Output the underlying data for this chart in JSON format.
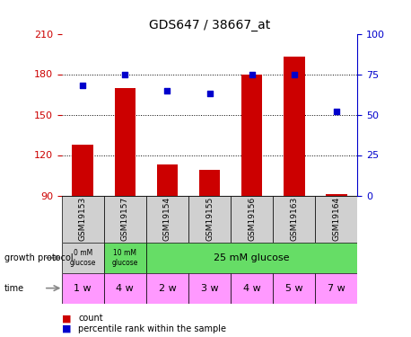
{
  "title": "GDS647 / 38667_at",
  "samples": [
    "GSM19153",
    "GSM19157",
    "GSM19154",
    "GSM19155",
    "GSM19156",
    "GSM19163",
    "GSM19164"
  ],
  "counts": [
    128,
    170,
    113,
    109,
    180,
    193,
    91
  ],
  "percentile_ranks": [
    68,
    75,
    65,
    63,
    75,
    75,
    52
  ],
  "ylim_left": [
    90,
    210
  ],
  "ylim_right": [
    0,
    100
  ],
  "yticks_left": [
    90,
    120,
    150,
    180,
    210
  ],
  "yticks_right": [
    0,
    25,
    50,
    75,
    100
  ],
  "time_labels": [
    "1 w",
    "4 w",
    "2 w",
    "3 w",
    "4 w",
    "5 w",
    "7 w"
  ],
  "time_color": "#ff99ff",
  "protocol_gray": "#d0d0d0",
  "protocol_green": "#66dd66",
  "sample_bg": "#d0d0d0",
  "bar_color": "#cc0000",
  "dot_color": "#0000cc",
  "axis_left_color": "#cc0000",
  "axis_right_color": "#0000cc",
  "bg_color": "#ffffff",
  "grid_color": "#000000"
}
